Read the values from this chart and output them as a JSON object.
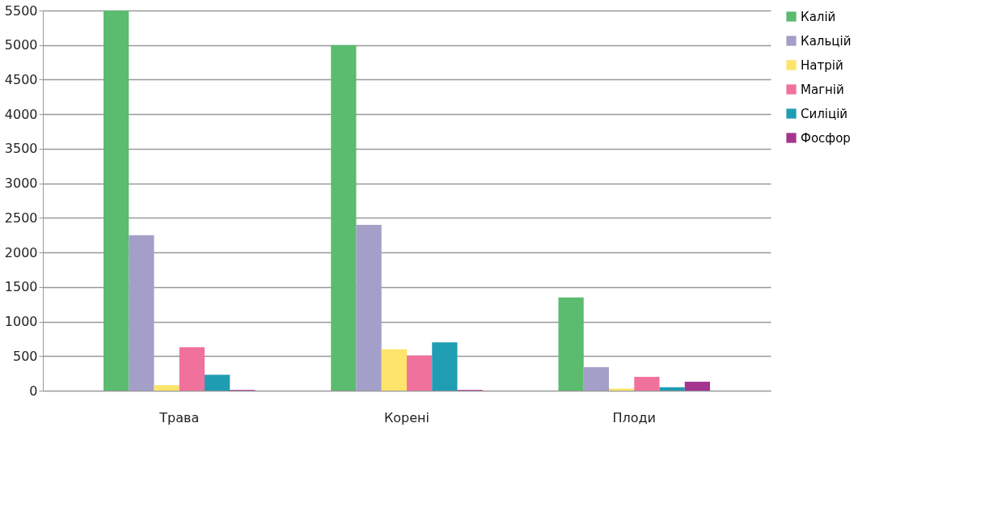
{
  "chart_data": {
    "type": "bar",
    "categories": [
      "Трава",
      "Корені",
      "Плоди"
    ],
    "series": [
      {
        "name": "Калій",
        "color": "#5bbb6f",
        "values": [
          5500,
          5000,
          1350
        ]
      },
      {
        "name": "Кальцій",
        "color": "#a49fc8",
        "values": [
          2250,
          2400,
          340
        ]
      },
      {
        "name": "Натрій",
        "color": "#fee46a",
        "values": [
          80,
          600,
          30
        ]
      },
      {
        "name": "Магній",
        "color": "#f0729c",
        "values": [
          630,
          510,
          200
        ]
      },
      {
        "name": "Силіцій",
        "color": "#1e9db3",
        "values": [
          230,
          700,
          50
        ]
      },
      {
        "name": "Фосфор",
        "color": "#a3358f",
        "values": [
          10,
          10,
          130
        ]
      }
    ],
    "ylim": [
      0,
      5500
    ],
    "yticks": [
      0,
      500,
      1000,
      1500,
      2000,
      2500,
      3000,
      3500,
      4000,
      4500,
      5000,
      5500
    ],
    "grid": "y",
    "legend": "right"
  }
}
